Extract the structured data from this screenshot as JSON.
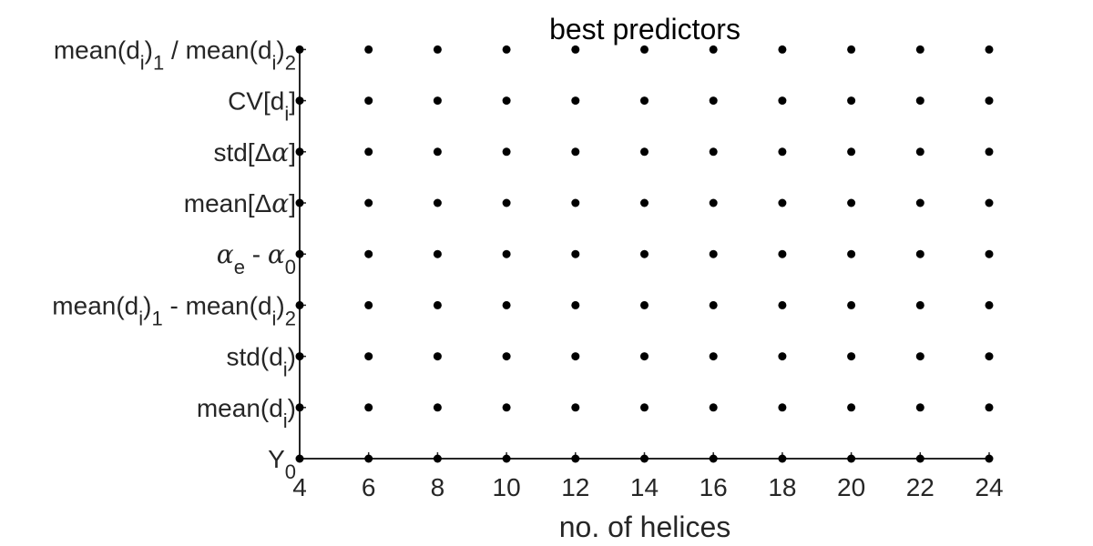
{
  "chart_data": {
    "type": "scatter",
    "title": "best predictors",
    "xlabel": "no. of helices",
    "ylabel": "",
    "x": [
      4,
      6,
      8,
      10,
      12,
      14,
      16,
      18,
      20,
      22,
      24
    ],
    "xlim": [
      4,
      24
    ],
    "x_ticks": [
      "4",
      "6",
      "8",
      "10",
      "12",
      "14",
      "16",
      "18",
      "20",
      "22",
      "24"
    ],
    "y_categories": [
      "Y0",
      "mean(di)",
      "std(di)",
      "mean(di)1 - mean(di)2",
      "αe - α0",
      "mean[Δα]",
      "std[Δα]",
      "CV[di]",
      "mean(di)1 / mean(di)2"
    ],
    "points": "every x value paired with every y category (all marked)",
    "grid": false,
    "legend": "none",
    "colors": {
      "marker": "#000000",
      "axis": "#262626",
      "background": "#ffffff"
    }
  }
}
